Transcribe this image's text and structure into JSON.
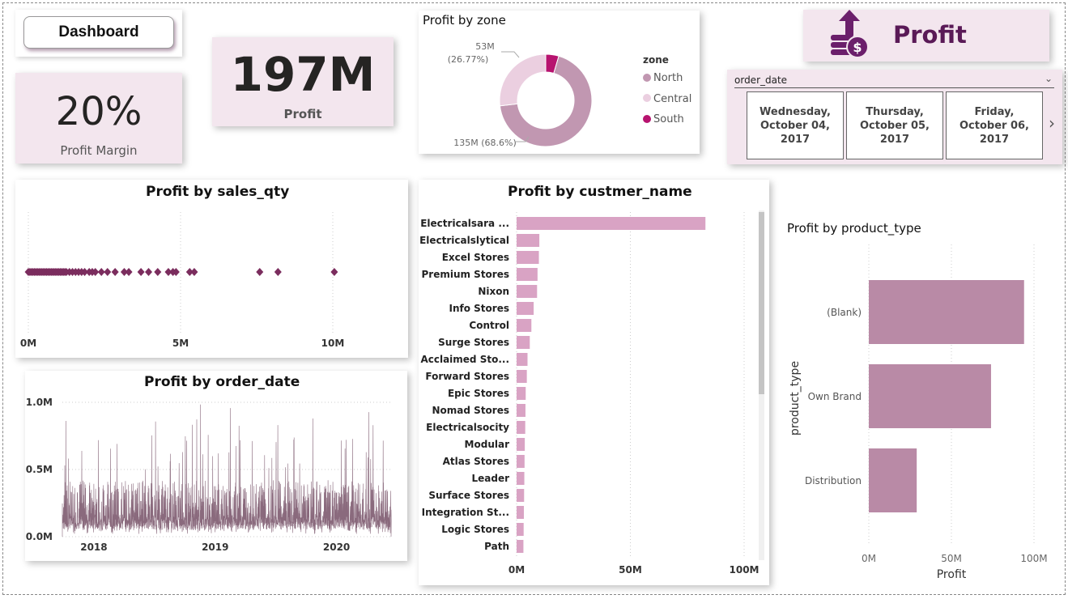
{
  "header": {
    "dashboard_label": "Dashboard",
    "profit_banner": "Profit"
  },
  "kpi": {
    "profit_margin_value": "20%",
    "profit_margin_label": "Profit Margin",
    "profit_value": "197M",
    "profit_label": "Profit"
  },
  "slicer": {
    "field": "order_date",
    "dates": [
      "Wednesday, October 04, 2017",
      "Thursday, October 05, 2017",
      "Friday, October 06, 2017"
    ]
  },
  "colors": {
    "card_pink": "#f3e6ee",
    "accent_purple": "#6b1f6b",
    "scatter_marker": "#7b2d5e",
    "bar_light": "#d9a3c4",
    "bar_mauve": "#b98aa6",
    "line_series": "#8a6a7d",
    "donut_north": "#c197b1",
    "donut_central": "#ebcfe0",
    "donut_south": "#b7136f"
  },
  "chart_data": [
    {
      "id": "zone",
      "type": "pie",
      "title": "Profit by zone",
      "legend_title": "zone",
      "categories": [
        "North",
        "Central",
        "South"
      ],
      "values": [
        135,
        53,
        9
      ],
      "data_labels": [
        {
          "category": "Central",
          "value": "53M",
          "percent": "(26.77%)"
        },
        {
          "category": "North",
          "value": "135M",
          "percent": "(68.6%)"
        }
      ],
      "legend_position": "right"
    },
    {
      "id": "sales_qty",
      "type": "scatter",
      "title": "Profit by sales_qty",
      "x_ticks": [
        "0M",
        "5M",
        "10M"
      ],
      "xlim": [
        0,
        10.5
      ],
      "x": [
        0.0,
        0.05,
        0.1,
        0.15,
        0.2,
        0.25,
        0.3,
        0.35,
        0.4,
        0.45,
        0.5,
        0.55,
        0.6,
        0.65,
        0.7,
        0.75,
        0.8,
        0.85,
        0.9,
        0.95,
        1.0,
        1.05,
        1.1,
        1.15,
        1.2,
        1.25,
        1.35,
        1.45,
        1.55,
        1.65,
        1.75,
        1.85,
        2.0,
        2.1,
        2.2,
        2.4,
        2.6,
        2.85,
        3.15,
        3.3,
        3.7,
        3.95,
        4.25,
        4.6,
        4.75,
        4.85,
        5.3,
        5.45,
        7.6,
        8.2,
        10.05
      ],
      "y": 0.6
    },
    {
      "id": "order_date",
      "type": "line",
      "title": "Profit by order_date",
      "y_ticks": [
        "1.0M",
        "0.5M",
        "0.0M"
      ],
      "ylim": [
        0,
        1.0
      ],
      "x_ticks": [
        "2018",
        "2019",
        "2020"
      ],
      "x_start": 2017.76,
      "x_end": 2020.47,
      "note": "daily series, ~1000 points, mostly 0.1M–0.45M with spikes up to ~1.0M"
    },
    {
      "id": "customer",
      "type": "bar",
      "orientation": "horizontal",
      "title": "Profit by custmer_name",
      "categories": [
        "Electricalsara ...",
        "Electricalslytical",
        "Excel Stores",
        "Premium Stores",
        "Nixon",
        "Info Stores",
        "Control",
        "Surge Stores",
        "Acclaimed Sto...",
        "Forward Stores",
        "Epic Stores",
        "Nomad Stores",
        "Electricalsocity",
        "Modular",
        "Atlas Stores",
        "Leader",
        "Surface Stores",
        "Integration St...",
        "Logic Stores",
        "Path"
      ],
      "values": [
        83,
        10,
        9.8,
        9.2,
        9,
        7.5,
        6.5,
        5.8,
        4.8,
        4.5,
        4,
        3.9,
        3.8,
        3.6,
        3.5,
        3.4,
        3.3,
        3.2,
        3.1,
        3
      ],
      "x_ticks": [
        "0M",
        "50M",
        "100M"
      ],
      "xlim": [
        0,
        100
      ]
    },
    {
      "id": "product_type",
      "type": "bar",
      "orientation": "horizontal",
      "title": "Profit by product_type",
      "categories": [
        "(Blank)",
        "Own Brand",
        "Distribution"
      ],
      "values": [
        94,
        74,
        29
      ],
      "x_ticks": [
        "0M",
        "50M",
        "100M"
      ],
      "xlim": [
        0,
        100
      ],
      "xlabel": "Profit",
      "ylabel": "product_type"
    }
  ]
}
